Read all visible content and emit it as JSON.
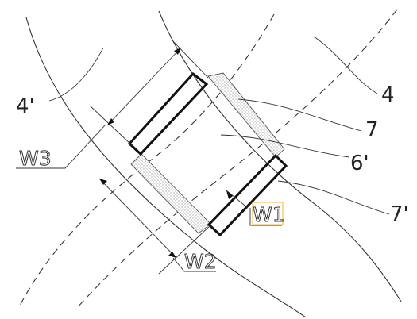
{
  "diagram": {
    "labels": {
      "l4": "4",
      "l4p": "4'",
      "l6p": "6'",
      "l7": "7",
      "l7p": "7'"
    },
    "widths": {
      "w1": "W1",
      "w2": "W2",
      "w3": "W3"
    },
    "colors": {
      "line": "#333333",
      "bold": "#111111",
      "highlight_box": "#f0c060"
    }
  }
}
